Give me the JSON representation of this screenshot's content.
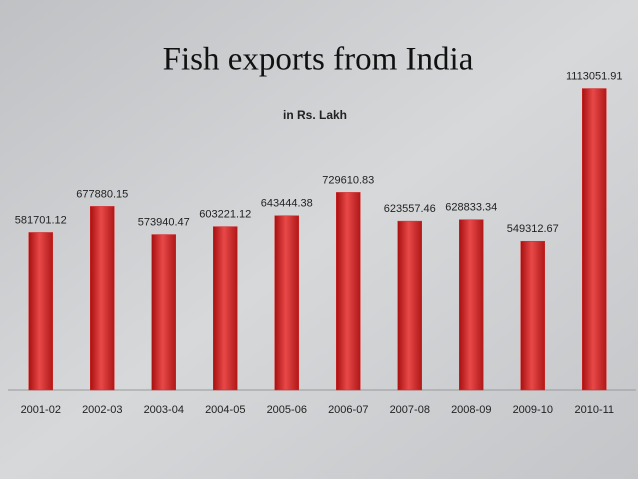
{
  "chart_data": {
    "type": "bar",
    "title": "Fish exports from India",
    "subtitle": "in Rs. Lakh",
    "categories": [
      "2001-02",
      "2002-03",
      "2003-04",
      "2004-05",
      "2005-06",
      "2006-07",
      "2007-08",
      "2008-09",
      "2009-10",
      "2010-11"
    ],
    "values": [
      581701.12,
      677880.15,
      573940.47,
      603221.12,
      643444.38,
      729610.83,
      623557.46,
      628833.34,
      549312.67,
      1113051.91
    ],
    "color": "#d42a2a",
    "ylim": [
      0,
      1200000
    ]
  }
}
